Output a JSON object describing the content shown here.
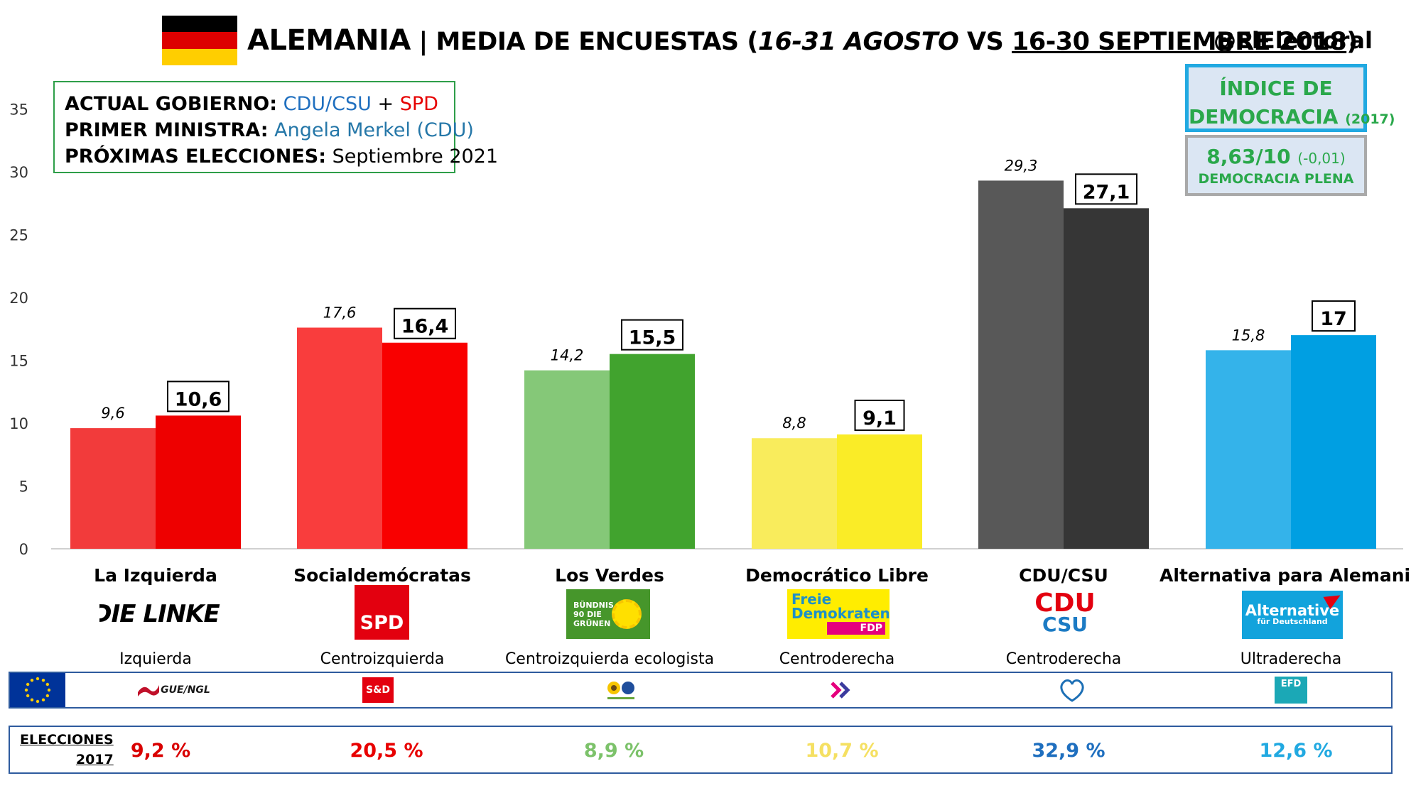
{
  "header": {
    "title_main": "ALEMANIA",
    "title_sep": "|",
    "title_prefix": "MEDIA DE ENCUESTAS (",
    "title_period_old": "16-31 AGOSTO",
    "title_vs": "VS",
    "title_period_new": "16-30 SEPTIEMBRE 2018",
    "title_suffix": ")",
    "handle": "@ElElectoral",
    "flag_colors": [
      "#000000",
      "#dd0000",
      "#ffce00"
    ]
  },
  "government_box": {
    "government_label": "ACTUAL GOBIERNO:",
    "government_party1": "CDU/CSU",
    "government_plus": "+",
    "government_party2": "SPD",
    "minister_label": "PRIMER MINISTRA:",
    "minister_value": "Angela Merkel (CDU)",
    "elections_label": "PRÓXIMAS ELECCIONES:",
    "elections_value": "Septiembre 2021"
  },
  "democracy_index": {
    "line1": "ÍNDICE DE",
    "line2": "DEMOCRACIA",
    "year": "(2017)",
    "score": "8,63/10",
    "change": "(-0,01)",
    "category": "DEMOCRACIA PLENA"
  },
  "chart_data": {
    "type": "bar",
    "ylim": [
      0,
      35
    ],
    "yticks": [
      0,
      5,
      10,
      15,
      20,
      25,
      30,
      35
    ],
    "grid": false,
    "categories": [
      "La Izquierda",
      "Socialdemócratas",
      "Los Verdes",
      "Democrático Libre",
      "CDU/CSU",
      "Alternativa para Alemania"
    ],
    "series": [
      {
        "values": [
          9.6,
          17.6,
          14.2,
          8.8,
          29.3,
          15.8
        ],
        "labels": [
          "9,6",
          "17,6",
          "14,2",
          "8,8",
          "29,3",
          "15,8"
        ],
        "colors": [
          "#f23b3b",
          "#f93d3d",
          "#85c878",
          "#f9ec5c",
          "#585858",
          "#34b3ea"
        ]
      },
      {
        "values": [
          10.6,
          16.4,
          15.5,
          9.1,
          27.1,
          17.0
        ],
        "labels": [
          "10,6",
          "16,4",
          "15,5",
          "9,1",
          "27,1",
          "17"
        ],
        "colors": [
          "#ee0000",
          "#f90000",
          "#41a32e",
          "#faec27",
          "#363636",
          "#009fe2"
        ]
      }
    ]
  },
  "parties": [
    {
      "name": "La Izquierda",
      "ideology": "Izquierda",
      "logo_text": "DIE LINKE.",
      "eu_group": "GUE/NGL",
      "result_2017": "9,2 %",
      "result_color": "#d90000"
    },
    {
      "name": "Socialdemócratas",
      "ideology": "Centroizquierda",
      "logo_text": "SPD",
      "eu_group": "S&D",
      "result_2017": "20,5 %",
      "result_color": "#e80000"
    },
    {
      "name": "Los Verdes",
      "ideology": "Centroizquierda ecologista",
      "logo_text": "BÜNDNIS 90 DIE GRÜNEN",
      "eu_group": "",
      "result_2017": "8,9 %",
      "result_color": "#7cc26a"
    },
    {
      "name": "Democrático Libre",
      "ideology": "Centroderecha",
      "logo_text": "Freie Demokraten",
      "logo_sub": "FDP",
      "eu_group": "",
      "result_2017": "10,7 %",
      "result_color": "#f5e062"
    },
    {
      "name": "CDU/CSU",
      "ideology": "Centroderecha",
      "logo_text": "CDU",
      "logo_sub": "CSU",
      "eu_group": "",
      "result_2017": "32,9 %",
      "result_color": "#1f6fbf"
    },
    {
      "name": "Alternativa para Alemania",
      "ideology": "Ultraderecha",
      "logo_text": "Alternative",
      "logo_sub": "für Deutschland",
      "eu_group": "EFD",
      "result_2017": "12,6 %",
      "result_color": "#21a9e1"
    }
  ],
  "elections_label_1": "ELECCIONES",
  "elections_label_2": "2017"
}
